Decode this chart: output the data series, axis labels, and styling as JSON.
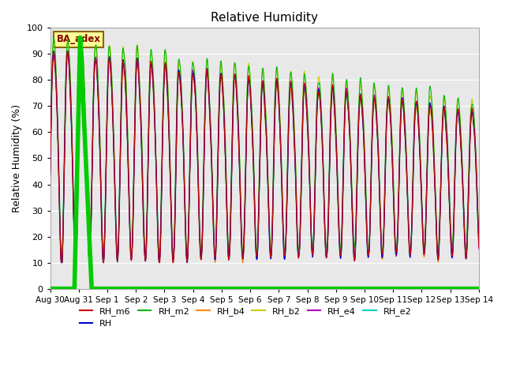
{
  "title": "Relative Humidity",
  "ylabel": "Relative Humidity (%)",
  "ylim": [
    0,
    100
  ],
  "yticks": [
    0,
    10,
    20,
    30,
    40,
    50,
    60,
    70,
    80,
    90,
    100
  ],
  "bg_color": "#e8e8e8",
  "fig_bg": "#ffffff",
  "annotation_label": "BA_adex",
  "annotation_box_color": "#ffff99",
  "annotation_text_color": "#8b0000",
  "annotation_border_color": "#8b6600",
  "series": {
    "RH_m6": {
      "color": "#cc0000",
      "lw": 0.8,
      "zorder": 5
    },
    "RH": {
      "color": "#0000cc",
      "lw": 0.8,
      "zorder": 5
    },
    "RH_m2": {
      "color": "#00bb00",
      "lw": 0.8,
      "zorder": 4
    },
    "RH_b4": {
      "color": "#ff8800",
      "lw": 0.8,
      "zorder": 4
    },
    "RH_b2": {
      "color": "#cccc00",
      "lw": 0.8,
      "zorder": 4
    },
    "RH_e4": {
      "color": "#aa00aa",
      "lw": 0.8,
      "zorder": 5
    },
    "RH_e2": {
      "color": "#00cccc",
      "lw": 1.2,
      "zorder": 3
    },
    "BA_adex": {
      "color": "#00cc00",
      "lw": 4.0,
      "zorder": 6
    }
  },
  "x_tick_labels": [
    "Aug 30",
    "Aug 31",
    "Sep 1",
    "Sep 2",
    "Sep 3",
    "Sep 4",
    "Sep 5",
    "Sep 6",
    "Sep 7",
    "Sep 8",
    "Sep 9",
    "Sep 10",
    "Sep 11",
    "Sep 12",
    "Sep 13",
    "Sep 14"
  ],
  "n_days": 16,
  "pts_per_day": 144,
  "legend_order": [
    "RH_m6",
    "RH",
    "RH_m2",
    "RH_b4",
    "RH_b2",
    "RH_e4",
    "RH_e2"
  ]
}
